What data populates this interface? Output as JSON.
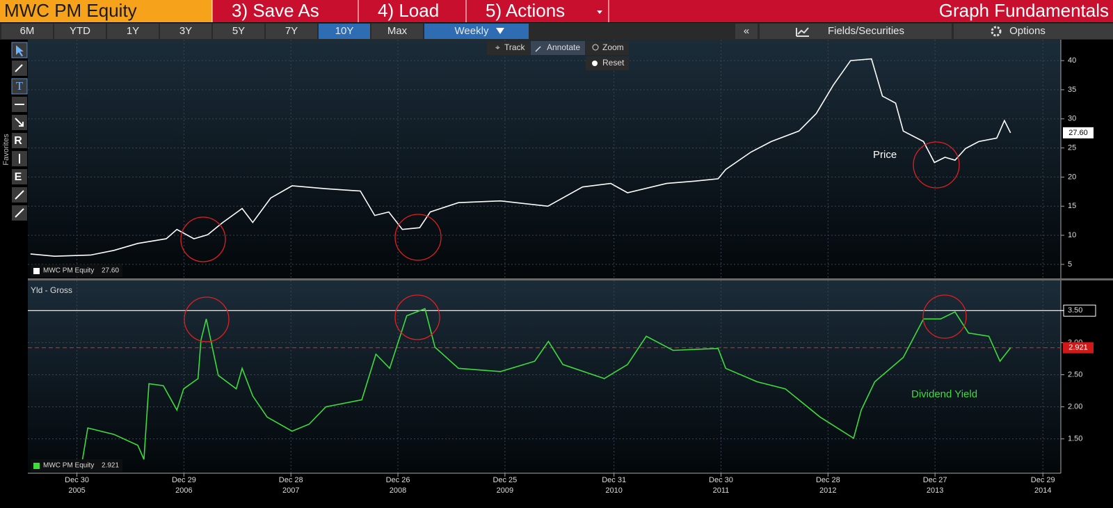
{
  "toolbar": {
    "security": "MWC PM Equity",
    "menu": [
      "3) Save As",
      "4) Load",
      "5) Actions"
    ],
    "page_title": "Graph Fundamentals",
    "ranges": [
      "6M",
      "YTD",
      "1Y",
      "3Y",
      "5Y",
      "7Y",
      "10Y",
      "Max"
    ],
    "active_range": "10Y",
    "frequency": "Weekly",
    "collapse": "«",
    "fields": "Fields/Securities",
    "options": "Options",
    "tools": [
      "Track",
      "Annotate",
      "Zoom",
      "Reset"
    ],
    "favorites": "Favorites"
  },
  "chart_data": [
    {
      "type": "line",
      "annotation": "Price",
      "ylim": [
        2.6,
        43.6
      ],
      "yticks": [
        5,
        10,
        15,
        20,
        25,
        30,
        35,
        40
      ],
      "grid": true,
      "series": [
        {
          "name": "MWC PM Equity",
          "color": "#ffffff",
          "last_value_label": "27.60",
          "x": [
            "2005-07-25",
            "2005-10-15",
            "2006-02-15",
            "2006-05-05",
            "2006-07-25",
            "2006-10-30",
            "2006-12-05",
            "2007-02-01",
            "2007-03-20",
            "2007-05-10",
            "2007-07-15",
            "2007-08-20",
            "2007-10-20",
            "2008-01-01",
            "2008-04-25",
            "2008-08-20",
            "2008-10-08",
            "2008-11-25",
            "2009-01-10",
            "2009-03-10",
            "2009-04-15",
            "2009-07-20",
            "2009-12-10",
            "2010-05-20",
            "2010-09-15",
            "2010-12-20",
            "2011-02-15",
            "2011-06-28",
            "2011-10-01",
            "2011-12-20",
            "2012-01-15",
            "2012-04-10",
            "2012-06-18",
            "2012-09-20",
            "2012-11-18",
            "2013-01-15",
            "2013-03-15",
            "2013-05-25",
            "2013-07-01",
            "2013-08-15",
            "2013-09-10",
            "2013-11-18",
            "2013-12-25",
            "2014-01-30",
            "2014-03-05",
            "2014-04-10",
            "2014-05-25",
            "2014-07-25",
            "2014-08-20",
            "2014-09-10"
          ],
          "values": [
            6.8,
            6.4,
            6.6,
            7.4,
            8.6,
            9.4,
            11.0,
            9.4,
            10.1,
            12.2,
            14.6,
            12.2,
            16.4,
            18.5,
            18.0,
            17.6,
            13.4,
            14.0,
            11.0,
            11.3,
            14.0,
            15.6,
            15.9,
            15.0,
            18.3,
            18.9,
            17.3,
            18.9,
            19.3,
            19.7,
            21.3,
            24.3,
            26.1,
            27.9,
            30.9,
            35.8,
            40.0,
            40.3,
            33.9,
            32.7,
            27.9,
            26.1,
            22.5,
            23.4,
            22.9,
            24.9,
            26.1,
            26.7,
            29.7,
            27.6
          ]
        }
      ]
    },
    {
      "type": "line",
      "title": "Yld - Gross",
      "annotation": "Dividend Yield",
      "xlim": [
        "2005-07-16",
        "2015-02-28"
      ],
      "xticks": [
        {
          "value": "2005-12-30",
          "label": "Dec 30",
          "year": "2005"
        },
        {
          "value": "2006-12-29",
          "label": "Dec 29",
          "year": "2006"
        },
        {
          "value": "2007-12-28",
          "label": "Dec 28",
          "year": "2007"
        },
        {
          "value": "2008-12-26",
          "label": "Dec 26",
          "year": "2008"
        },
        {
          "value": "2009-12-25",
          "label": "Dec 25",
          "year": "2009"
        },
        {
          "value": "2010-12-31",
          "label": "Dec 31",
          "year": "2010"
        },
        {
          "value": "2011-12-30",
          "label": "Dec 30",
          "year": "2011"
        },
        {
          "value": "2012-12-28",
          "label": "Dec 28",
          "year": "2012"
        },
        {
          "value": "2013-12-27",
          "label": "Dec 27",
          "year": "2013"
        },
        {
          "value": "2014-12-29",
          "label": "Dec 29",
          "year": "2014"
        }
      ],
      "ylim": [
        0.965,
        3.97
      ],
      "yticks": [
        {
          "value": 1.5,
          "label": "1.50"
        },
        {
          "value": 2,
          "label": "2.00"
        },
        {
          "value": 2.5,
          "label": "2.50"
        },
        {
          "value": 3,
          "label": "3.00"
        },
        {
          "value": 3.5,
          "label": "3.50"
        }
      ],
      "grid": true,
      "reference_lines": [
        {
          "value": 3.5,
          "color": "#ffffff",
          "style": "solid"
        },
        {
          "value": 2.921,
          "color": "#e02020",
          "style": "dashed"
        }
      ],
      "series": [
        {
          "name": "MWC PM Equity",
          "color": "#3ddc3d",
          "last_value_label": "2.921",
          "x": [
            "2006-01-18",
            "2006-02-05",
            "2006-05-05",
            "2006-07-25",
            "2006-08-15",
            "2006-09-01",
            "2006-10-20",
            "2006-12-05",
            "2006-12-28",
            "2007-02-15",
            "2007-02-25",
            "2007-03-15",
            "2007-04-25",
            "2007-06-25",
            "2007-07-15",
            "2007-08-20",
            "2007-10-08",
            "2008-01-01",
            "2008-02-28",
            "2008-04-25",
            "2008-08-25",
            "2008-10-12",
            "2008-11-28",
            "2009-01-25",
            "2009-03-28",
            "2009-05-01",
            "2009-07-20",
            "2009-12-10",
            "2010-04-05",
            "2010-05-22",
            "2010-07-10",
            "2010-11-28",
            "2011-02-15",
            "2011-04-20",
            "2011-07-20",
            "2011-12-20",
            "2012-01-15",
            "2012-05-01",
            "2012-08-05",
            "2012-12-01",
            "2013-03-25",
            "2013-04-20",
            "2013-06-05",
            "2013-09-10",
            "2013-11-18",
            "2014-01-15",
            "2014-03-05",
            "2014-04-20",
            "2014-06-28",
            "2014-08-05",
            "2014-09-10"
          ],
          "values": [
            1.18,
            1.67,
            1.57,
            1.4,
            1.18,
            2.36,
            2.33,
            1.95,
            2.28,
            2.44,
            3.04,
            3.37,
            2.49,
            2.28,
            2.6,
            2.17,
            1.84,
            1.62,
            1.73,
            2.0,
            2.11,
            2.82,
            2.6,
            3.42,
            3.53,
            2.93,
            2.6,
            2.55,
            2.71,
            3.02,
            2.66,
            2.44,
            2.66,
            3.1,
            2.88,
            2.91,
            2.6,
            2.39,
            2.28,
            1.84,
            1.51,
            1.95,
            2.39,
            2.77,
            3.37,
            3.37,
            3.48,
            3.15,
            3.1,
            2.71,
            2.921
          ]
        }
      ]
    }
  ]
}
